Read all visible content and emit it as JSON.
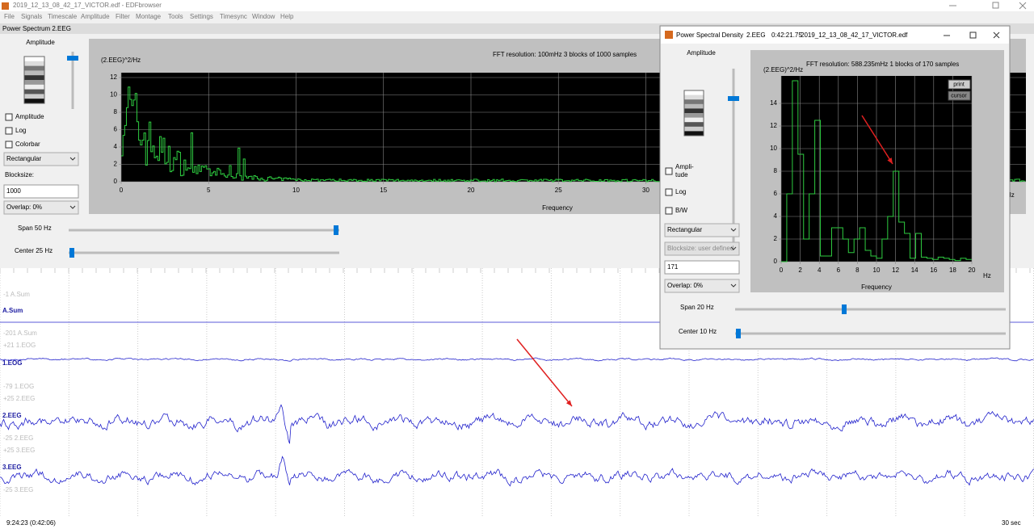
{
  "window": {
    "title": "2019_12_13_08_42_17_VICTOR.edf - EDFbrowser"
  },
  "menu": [
    "File",
    "Signals",
    "Timescale",
    "Amplitude",
    "Filter",
    "Montage",
    "Tools",
    "Settings",
    "Timesync",
    "Window",
    "Help"
  ],
  "dock": {
    "title": "Power Spectrum 2.EEG",
    "amplitude_label": "Amplitude",
    "checkboxes": [
      "Amplitude",
      "Log",
      "Colorbar"
    ],
    "window_function": "Rectangular",
    "blocksize_label": "Blocksize:",
    "blocksize": "1000",
    "overlap": "Overlap: 0%",
    "plot": {
      "y_label": "(2.EEG)^2/Hz",
      "info": "FFT resolution: 100mHz   3 blocks of 1000 samples",
      "x_label": "Frequency",
      "x_unit": "Hz",
      "xticks": [
        0,
        5,
        10,
        15,
        20,
        25,
        30
      ],
      "yticks": [
        0,
        2,
        4,
        6,
        8,
        10,
        12
      ]
    },
    "span": "Span 50 Hz",
    "center": "Center 25 Hz"
  },
  "signals": [
    {
      "name": "A.Sum",
      "top": "-1 A.Sum",
      "bottom": "-201 A.Sum"
    },
    {
      "name": "1.EOG",
      "top": "+21 1.EOG",
      "bottom": "-79 1.EOG"
    },
    {
      "name": "2.EEG",
      "top": "+25 2.EEG",
      "bottom": "-25 2.EEG"
    },
    {
      "name": "3.EEG",
      "top": "+25 3.EEG",
      "bottom": "-25 3.EEG"
    }
  ],
  "time": "9:24:23 (0:42:06)",
  "timescale": "30 sec",
  "popup": {
    "title": "Power Spectral Density",
    "signal": "2.EEG",
    "time": "0:42:21.75",
    "file": "2019_12_13_08_42_17_VICTOR.edf",
    "amplitude_label": "Amplitude",
    "checkbox_amplitude": [
      "Ampli-",
      "tude"
    ],
    "checkbox_log": "Log",
    "checkbox_bw": "B/W",
    "window_function": "Rectangular",
    "blocksize": "Blocksize: user defined",
    "blocksize_value": "171",
    "overlap": "Overlap: 0%",
    "plot": {
      "y_label": "(2.EEG)^2/Hz",
      "info": "FFT resolution: 588.235mHz   1 blocks of 170 samples",
      "x_label": "Frequency",
      "x_unit": "Hz",
      "xticks": [
        0,
        2,
        4,
        6,
        8,
        10,
        12,
        14,
        16,
        18,
        20
      ],
      "yticks": [
        0,
        2,
        4,
        6,
        8,
        10,
        12,
        14
      ],
      "buttons": [
        "print",
        "cursor"
      ]
    },
    "span": "Span 20 Hz",
    "center": "Center 10 Hz"
  }
}
